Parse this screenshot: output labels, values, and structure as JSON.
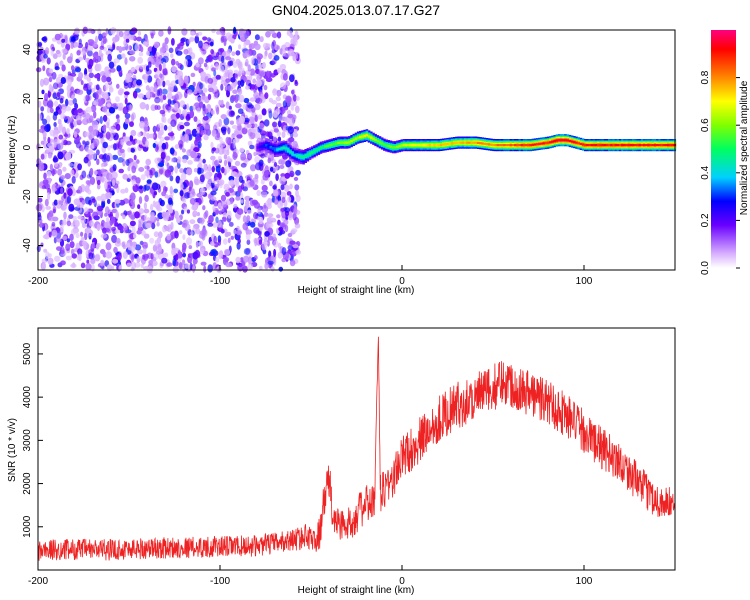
{
  "title": "GN04.2025.013.07.17.G27",
  "chart_data": [
    {
      "type": "heatmap",
      "xlabel": "Height of straight line (km)",
      "ylabel": "Frequency (Hz)",
      "xlim": [
        -200,
        150
      ],
      "ylim": [
        -50,
        48
      ],
      "xticks": [
        -200,
        -100,
        0,
        100
      ],
      "yticks": [
        -40,
        -20,
        0,
        20,
        40
      ],
      "colorbar": {
        "label": "Normalized spectral amplitude",
        "ticks": [
          0.0,
          0.2,
          0.4,
          0.6,
          0.8
        ],
        "ticklabels": [
          "0.0",
          "0.2",
          "0.4",
          "0.6",
          "0.8"
        ],
        "range": [
          0,
          1
        ]
      },
      "noise_region": {
        "x_range": [
          -200,
          -57
        ],
        "amplitude": [
          0.05,
          0.3
        ]
      },
      "signal_track": {
        "x": [
          -80,
          -75,
          -70,
          -65,
          -60,
          -55,
          -50,
          -45,
          -40,
          -35,
          -30,
          -25,
          -20,
          -15,
          -10,
          -5,
          0,
          10,
          20,
          30,
          40,
          50,
          60,
          70,
          80,
          85,
          90,
          95,
          100,
          110,
          120,
          130,
          140,
          150
        ],
        "frequency": [
          0,
          1,
          -1,
          0,
          -3,
          -4,
          -2,
          0,
          1,
          2,
          2,
          4,
          5,
          3,
          1,
          0,
          1,
          1,
          1,
          2,
          2,
          1,
          1,
          1,
          2,
          3,
          3,
          2,
          1,
          1,
          1,
          1,
          1,
          1
        ],
        "amplitude": [
          0.2,
          0.3,
          0.35,
          0.45,
          0.4,
          0.45,
          0.5,
          0.5,
          0.55,
          0.6,
          0.65,
          0.65,
          0.7,
          0.6,
          0.55,
          0.6,
          0.65,
          0.7,
          0.75,
          0.75,
          0.8,
          0.8,
          0.85,
          0.9,
          0.9,
          0.95,
          0.95,
          0.9,
          0.9,
          0.9,
          0.9,
          0.9,
          0.9,
          0.9
        ],
        "half_width": [
          3,
          3,
          3,
          3,
          3,
          3,
          2.5,
          2.5,
          2.5,
          2.5,
          2.5,
          2.5,
          2.5,
          2.5,
          2.5,
          2.5,
          2.5,
          2.5,
          2.5,
          2.5,
          2.5,
          2.5,
          2.5,
          2.5,
          2.5,
          2.5,
          2.5,
          2.5,
          2.5,
          2.5,
          2.5,
          2.5,
          2.5,
          2.5
        ]
      }
    },
    {
      "type": "line",
      "xlabel": "Height of straight line (km)",
      "ylabel": "SNR (10 * v/v)",
      "xlim": [
        -200,
        150
      ],
      "ylim": [
        0,
        5600
      ],
      "xticks": [
        -200,
        -100,
        0,
        100
      ],
      "yticks": [
        1000,
        2000,
        3000,
        4000,
        5000
      ],
      "color": "#ee2222",
      "series": [
        {
          "x": [
            -200,
            -180,
            -160,
            -140,
            -120,
            -100,
            -80,
            -70,
            -60,
            -55,
            -50,
            -48,
            -45,
            -42,
            -40,
            -38,
            -35,
            -30,
            -25,
            -20,
            -15,
            -13,
            -12,
            -10,
            -5,
            0,
            10,
            20,
            30,
            40,
            50,
            55,
            60,
            70,
            80,
            90,
            100,
            110,
            120,
            130,
            140,
            150
          ],
          "values": [
            450,
            480,
            470,
            500,
            520,
            540,
            560,
            620,
            700,
            750,
            800,
            600,
            900,
            1800,
            2100,
            1200,
            1100,
            1000,
            1300,
            1500,
            1600,
            5500,
            1800,
            1900,
            2100,
            2600,
            3000,
            3500,
            3800,
            4000,
            4200,
            4400,
            4300,
            4100,
            3900,
            3600,
            3200,
            2800,
            2500,
            2000,
            1600,
            1500
          ],
          "noise": [
            250,
            250,
            250,
            250,
            250,
            250,
            250,
            250,
            250,
            300,
            300,
            300,
            400,
            500,
            500,
            400,
            400,
            400,
            450,
            450,
            450,
            100,
            500,
            500,
            500,
            500,
            550,
            550,
            550,
            550,
            550,
            550,
            550,
            550,
            550,
            550,
            500,
            500,
            450,
            450,
            400,
            400
          ]
        }
      ]
    }
  ]
}
